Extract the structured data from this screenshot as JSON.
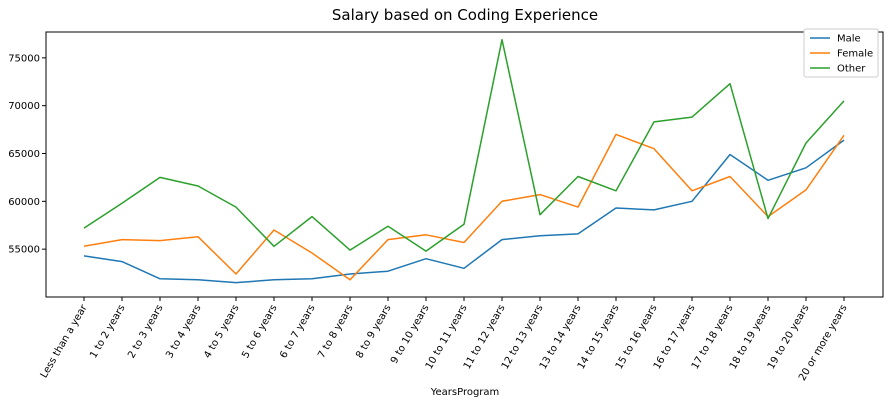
{
  "chart_data": {
    "type": "line",
    "title": "Salary based on Coding Experience",
    "xlabel": "YearsProgram",
    "ylabel": "",
    "categories": [
      "Less than a year",
      "1 to 2 years",
      "2 to 3 years",
      "3 to 4 years",
      "4 to 5 years",
      "5 to 6 years",
      "6 to 7 years",
      "7 to 8 years",
      "8 to 9 years",
      "9 to 10 years",
      "10 to 11 years",
      "11 to 12 years",
      "12 to 13 years",
      "13 to 14 years",
      "14 to 15 years",
      "15 to 16 years",
      "16 to 17 years",
      "17 to 18 years",
      "18 to 19 years",
      "19 to 20 years",
      "20 or more years"
    ],
    "yticks": [
      55000,
      60000,
      65000,
      70000,
      75000
    ],
    "ylim": [
      50000,
      77700
    ],
    "grid": false,
    "legend_position": "top-right",
    "series": [
      {
        "name": "Male",
        "color": "#1f77b4",
        "values": [
          54300,
          53700,
          51900,
          51800,
          51500,
          51800,
          51900,
          52400,
          52700,
          54000,
          53000,
          56000,
          56400,
          56600,
          59300,
          59100,
          60000,
          64900,
          62200,
          63500,
          66400
        ]
      },
      {
        "name": "Female",
        "color": "#ff7f0e",
        "values": [
          55300,
          56000,
          55900,
          56300,
          52400,
          57000,
          54600,
          51800,
          56000,
          56500,
          55700,
          60000,
          60700,
          59400,
          67000,
          65500,
          61100,
          62600,
          58400,
          61200,
          66900
        ]
      },
      {
        "name": "Other",
        "color": "#2ca02c",
        "values": [
          57200,
          59800,
          62500,
          61600,
          59400,
          55300,
          58400,
          54900,
          57400,
          54800,
          57600,
          76900,
          58600,
          62600,
          61100,
          68300,
          68800,
          72300,
          58200,
          66100,
          70500
        ]
      }
    ]
  }
}
